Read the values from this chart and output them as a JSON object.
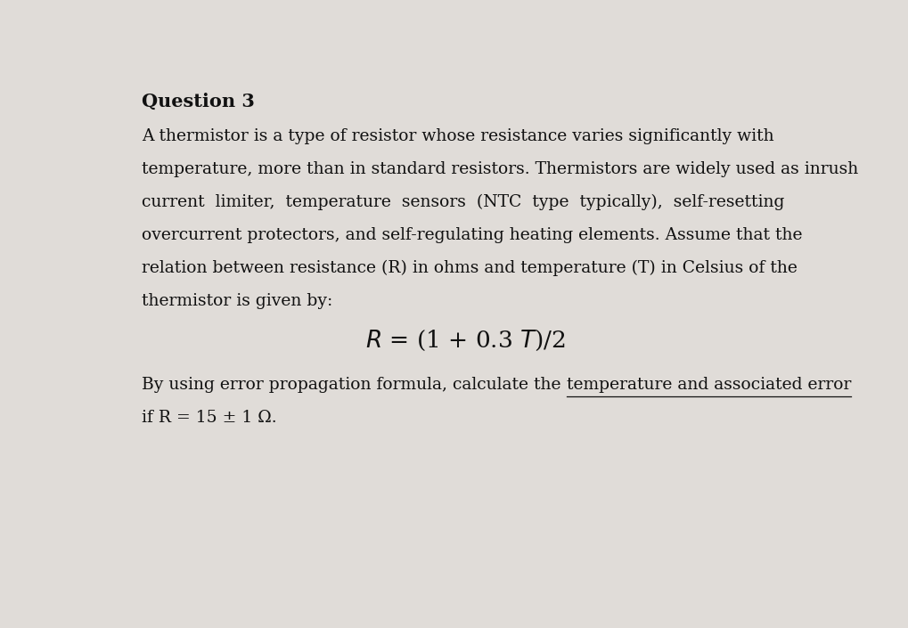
{
  "background_color": "#e0dcd8",
  "title": "Question 3",
  "title_fontsize": 15,
  "body_lines": [
    "A thermistor is a type of resistor whose resistance varies significantly with",
    "temperature, more than in standard resistors. Thermistors are widely used as inrush",
    "current  limiter,  temperature  sensors  (NTC  type  typically),  self-resetting",
    "overcurrent protectors, and self-regulating heating elements. Assume that the",
    "relation between resistance (R) in ohms and temperature (T) in Celsius of the",
    "thermistor is given by:"
  ],
  "formula": "R = (1 + 0.3 T)/2",
  "last_line_normal": "By using error propagation formula, calculate the ",
  "last_line_underlined": "temperature and associated error",
  "last_line2": "if R = 15 ± 1 Ω.",
  "text_color": "#111111",
  "body_fontsize": 13.5,
  "formula_fontsize": 19,
  "title_fontsize_val": 15,
  "lh": 0.068
}
